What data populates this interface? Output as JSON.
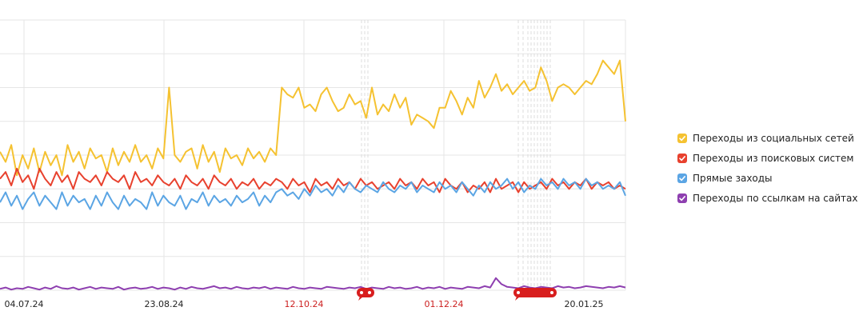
{
  "chart_data": {
    "type": "line",
    "x_ticks": [
      {
        "label": "04.07.24",
        "holiday": false
      },
      {
        "label": "23.08.24",
        "holiday": false
      },
      {
        "label": "12.10.24",
        "holiday": true
      },
      {
        "label": "01.12.24",
        "holiday": true
      },
      {
        "label": "20.01.25",
        "holiday": false
      }
    ],
    "grid": true,
    "legend_position": "right",
    "series": [
      {
        "name": "Переходы из социальных сетей",
        "color": "#f5c231",
        "values": [
          205,
          190,
          215,
          170,
          200,
          180,
          210,
          175,
          205,
          185,
          200,
          170,
          215,
          190,
          205,
          180,
          210,
          195,
          200,
          175,
          210,
          185,
          205,
          190,
          215,
          190,
          200,
          180,
          210,
          195,
          300,
          200,
          190,
          205,
          210,
          180,
          215,
          190,
          205,
          175,
          210,
          195,
          200,
          185,
          210,
          195,
          205,
          190,
          210,
          200,
          300,
          290,
          285,
          300,
          270,
          275,
          265,
          290,
          300,
          280,
          265,
          270,
          290,
          275,
          280,
          255,
          300,
          260,
          275,
          265,
          290,
          270,
          285,
          245,
          260,
          255,
          250,
          240,
          270,
          270,
          295,
          280,
          260,
          285,
          270,
          310,
          285,
          300,
          320,
          295,
          305,
          290,
          300,
          310,
          295,
          300,
          330,
          310,
          280,
          300,
          305,
          300,
          290,
          300,
          310,
          305,
          320,
          340,
          330,
          320,
          340,
          250
        ]
      },
      {
        "name": "Переходы из поисковых систем",
        "color": "#e8412e",
        "values": [
          165,
          175,
          155,
          180,
          160,
          170,
          150,
          180,
          165,
          155,
          175,
          160,
          170,
          150,
          175,
          165,
          160,
          170,
          155,
          175,
          165,
          160,
          170,
          150,
          175,
          160,
          165,
          155,
          170,
          160,
          155,
          165,
          150,
          170,
          160,
          155,
          165,
          150,
          170,
          160,
          155,
          165,
          150,
          160,
          155,
          165,
          150,
          160,
          155,
          165,
          160,
          150,
          165,
          155,
          160,
          145,
          165,
          155,
          160,
          150,
          165,
          155,
          160,
          150,
          165,
          155,
          160,
          150,
          155,
          160,
          150,
          165,
          155,
          160,
          150,
          165,
          155,
          160,
          145,
          165,
          155,
          150,
          160,
          145,
          155,
          150,
          160,
          145,
          165,
          150,
          155,
          160,
          145,
          160,
          150,
          155,
          160,
          150,
          165,
          155,
          160,
          150,
          160,
          155,
          165,
          150,
          160,
          155,
          160,
          150,
          155,
          150
        ]
      },
      {
        "name": "Прямые заходы",
        "color": "#5ba5e4",
        "values": [
          130,
          145,
          125,
          140,
          120,
          135,
          145,
          125,
          140,
          130,
          120,
          145,
          125,
          140,
          130,
          135,
          120,
          140,
          125,
          145,
          130,
          120,
          140,
          125,
          135,
          130,
          120,
          145,
          125,
          140,
          130,
          125,
          140,
          120,
          135,
          130,
          145,
          125,
          140,
          130,
          135,
          125,
          140,
          130,
          135,
          145,
          125,
          140,
          130,
          145,
          150,
          140,
          145,
          135,
          150,
          140,
          155,
          145,
          150,
          140,
          155,
          145,
          160,
          150,
          145,
          155,
          150,
          145,
          160,
          150,
          145,
          155,
          150,
          160,
          145,
          155,
          150,
          145,
          160,
          150,
          155,
          145,
          160,
          150,
          140,
          155,
          145,
          160,
          150,
          155,
          165,
          150,
          160,
          145,
          155,
          150,
          165,
          155,
          160,
          150,
          165,
          155,
          160,
          150,
          165,
          155,
          160,
          150,
          155,
          150,
          160,
          140
        ]
      },
      {
        "name": "Переходы по ссылкам на сайтах",
        "color": "#8e3fb0",
        "values": [
          2,
          4,
          1,
          3,
          2,
          5,
          3,
          1,
          4,
          2,
          6,
          3,
          2,
          4,
          1,
          3,
          5,
          2,
          4,
          3,
          2,
          5,
          1,
          3,
          4,
          2,
          3,
          5,
          2,
          4,
          3,
          1,
          4,
          2,
          5,
          3,
          2,
          4,
          6,
          3,
          4,
          2,
          5,
          3,
          2,
          4,
          3,
          5,
          2,
          4,
          3,
          2,
          5,
          3,
          2,
          4,
          3,
          2,
          5,
          4,
          3,
          2,
          4,
          3,
          5,
          2,
          4,
          3,
          2,
          5,
          3,
          4,
          2,
          3,
          5,
          2,
          4,
          3,
          5,
          2,
          4,
          3,
          2,
          5,
          4,
          3,
          6,
          4,
          18,
          9,
          5,
          4,
          3,
          6,
          4,
          3,
          5,
          4,
          3,
          6,
          4,
          5,
          3,
          4,
          6,
          5,
          4,
          3,
          5,
          4,
          6,
          4
        ]
      }
    ]
  }
}
